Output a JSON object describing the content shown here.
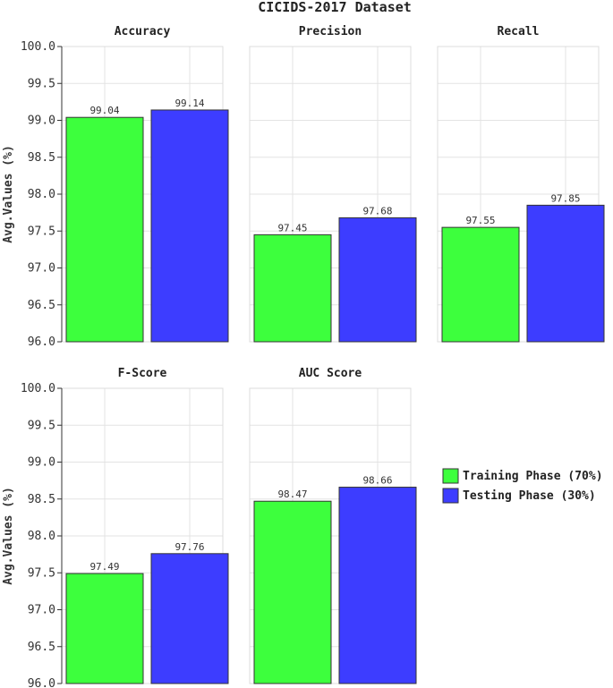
{
  "chart_data": {
    "type": "bar",
    "title": "CICIDS-2017 Dataset",
    "ylabel": "Avg.Values (%)",
    "ylim": [
      96.0,
      100.0
    ],
    "yticks": [
      "96.0",
      "96.5",
      "97.0",
      "97.5",
      "98.0",
      "98.5",
      "99.0",
      "99.5",
      "100.0"
    ],
    "series": [
      {
        "name": "Training Phase (70%)",
        "color": "#3dff3d"
      },
      {
        "name": "Testing Phase (30%)",
        "color": "#3d3dff"
      }
    ],
    "panels": [
      {
        "title": "Accuracy",
        "values": [
          99.04,
          99.14
        ],
        "labels": [
          "99.04",
          "99.14"
        ]
      },
      {
        "title": "Precision",
        "values": [
          97.45,
          97.68
        ],
        "labels": [
          "97.45",
          "97.68"
        ]
      },
      {
        "title": "Recall",
        "values": [
          97.55,
          97.85
        ],
        "labels": [
          "97.55",
          "97.85"
        ]
      },
      {
        "title": "F-Score",
        "values": [
          97.49,
          97.76
        ],
        "labels": [
          "97.49",
          "97.76"
        ]
      },
      {
        "title": "AUC Score",
        "values": [
          98.47,
          98.66
        ],
        "labels": [
          "98.47",
          "98.66"
        ]
      }
    ],
    "legend_position": "right"
  }
}
